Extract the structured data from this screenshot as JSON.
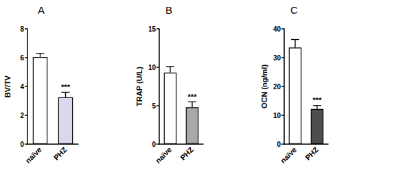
{
  "chart_data": [
    {
      "type": "bar",
      "title": "A",
      "y_label": "BV/TV",
      "categories": [
        "naïve",
        "PHZ"
      ],
      "values": [
        6.05,
        3.25
      ],
      "errors": [
        0.25,
        0.35
      ],
      "colors": [
        "#ffffff",
        "#d9d8ee"
      ],
      "annotations": [
        null,
        "***"
      ],
      "ylim": [
        0,
        8
      ],
      "yticks": [
        0,
        2,
        4,
        6,
        8
      ],
      "grid": false
    },
    {
      "type": "bar",
      "title": "B",
      "y_label": "TRAP (U/L)",
      "categories": [
        "naïve",
        "PHZ"
      ],
      "values": [
        9.3,
        4.8
      ],
      "errors": [
        0.8,
        0.7
      ],
      "colors": [
        "#ffffff",
        "#a9a9a9"
      ],
      "annotations": [
        null,
        "***"
      ],
      "ylim": [
        0,
        15
      ],
      "yticks": [
        0,
        5,
        10,
        15
      ],
      "grid": false
    },
    {
      "type": "bar",
      "title": "C",
      "y_label": "OCN (ng/ml)",
      "categories": [
        "naïve",
        "PHZ"
      ],
      "values": [
        33.5,
        12.2
      ],
      "errors": [
        2.8,
        1.2
      ],
      "colors": [
        "#ffffff",
        "#4d4d4d"
      ],
      "annotations": [
        null,
        "***"
      ],
      "ylim": [
        0,
        40
      ],
      "yticks": [
        0,
        10,
        20,
        30,
        40
      ],
      "grid": false
    }
  ]
}
